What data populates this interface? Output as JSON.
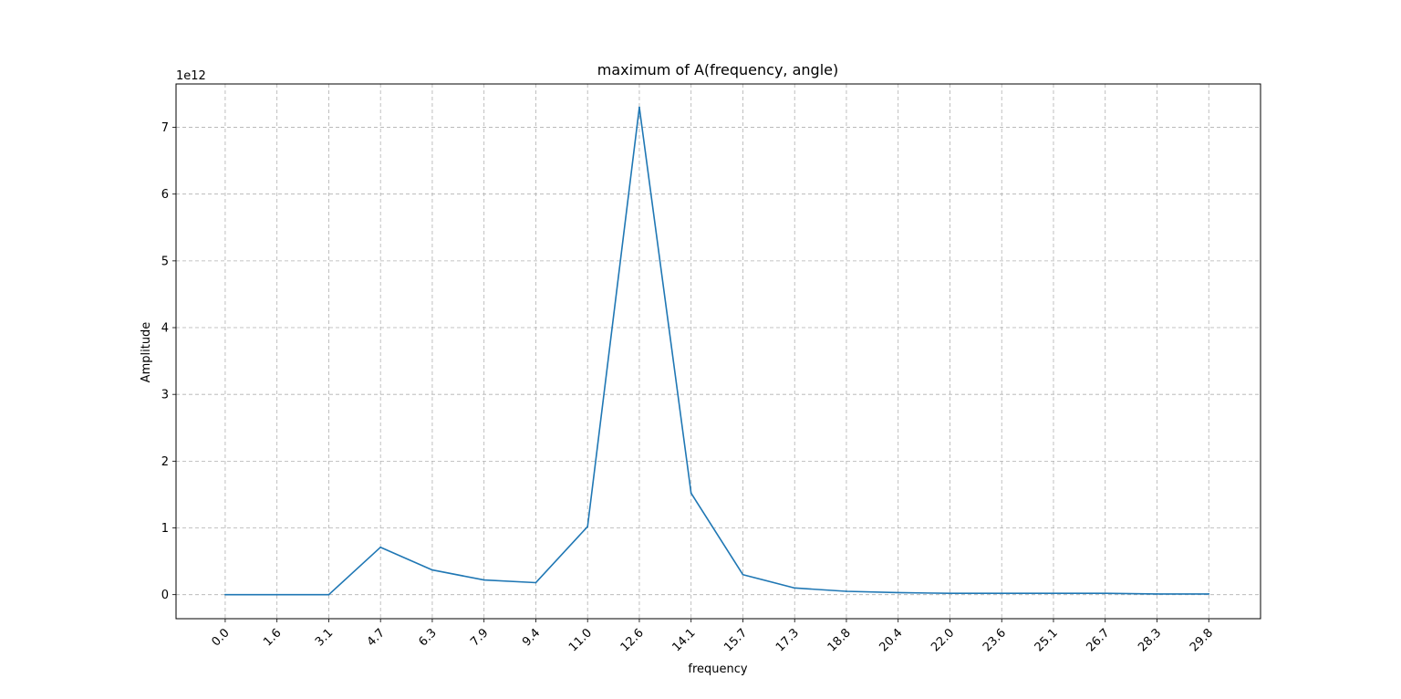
{
  "chart_data": {
    "type": "line",
    "title": "maximum of A(frequency, angle)",
    "xlabel": "frequency",
    "ylabel": "Amplitude",
    "y_offset_text": "1e12",
    "x_tick_labels": [
      "0.0",
      "1.6",
      "3.1",
      "4.7",
      "6.3",
      "7.9",
      "9.4",
      "11.0",
      "12.6",
      "14.1",
      "15.7",
      "17.3",
      "18.8",
      "20.4",
      "22.0",
      "23.6",
      "25.1",
      "26.7",
      "28.3",
      "29.8"
    ],
    "y_ticks": [
      0,
      1,
      2,
      3,
      4,
      5,
      6,
      7
    ],
    "y_tick_labels": [
      "0",
      "1",
      "2",
      "3",
      "4",
      "5",
      "6",
      "7"
    ],
    "ylim": [
      -0.36,
      7.65
    ],
    "x_index_range": [
      -0.95,
      20.0
    ],
    "grid": true,
    "grid_style": "dashed",
    "line_color": "#1f77b4",
    "series": [
      {
        "values": [
          0.0,
          0.0,
          0.0,
          0.71,
          0.37,
          0.22,
          0.18,
          1.02,
          7.3,
          1.52,
          0.3,
          0.1,
          0.05,
          0.03,
          0.02,
          0.02,
          0.02,
          0.02,
          0.01,
          0.01
        ]
      }
    ]
  }
}
